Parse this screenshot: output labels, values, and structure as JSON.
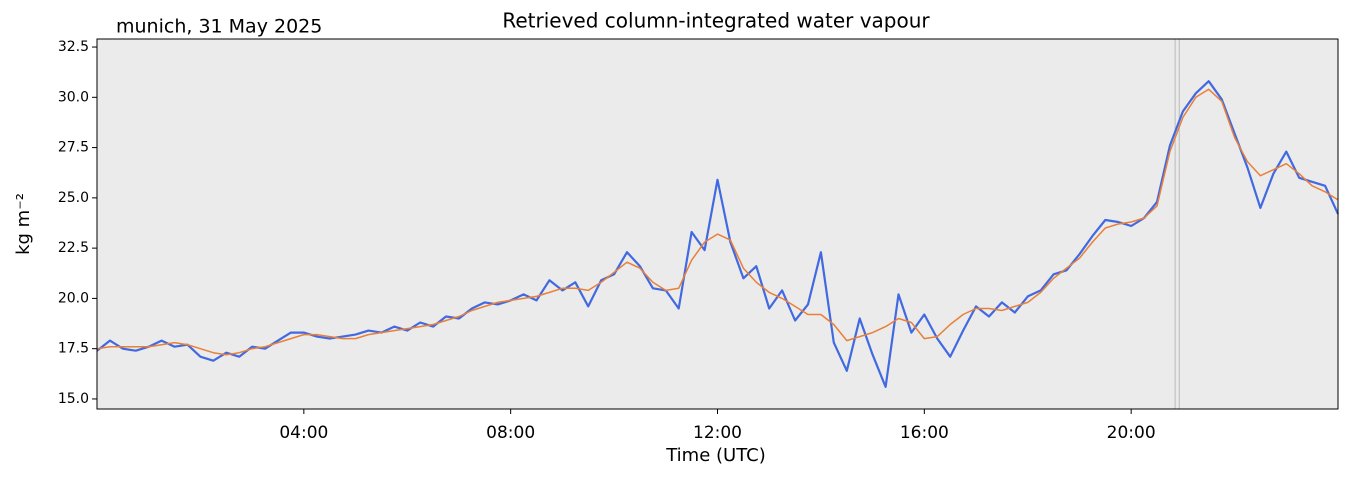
{
  "chart_data": {
    "type": "line",
    "title": "Retrieved column-integrated water vapour",
    "subtitle": "munich, 31 May 2025",
    "xlabel": "Time (UTC)",
    "ylabel": "kg m⁻²",
    "x": [
      0,
      0.25,
      0.5,
      0.75,
      1,
      1.25,
      1.5,
      1.75,
      2,
      2.25,
      2.5,
      2.75,
      3,
      3.25,
      3.5,
      3.75,
      4,
      4.25,
      4.5,
      4.75,
      5,
      5.25,
      5.5,
      5.75,
      6,
      6.25,
      6.5,
      6.75,
      7,
      7.25,
      7.5,
      7.75,
      8,
      8.25,
      8.5,
      8.75,
      9,
      9.25,
      9.5,
      9.75,
      10,
      10.25,
      10.5,
      10.75,
      11,
      11.25,
      11.5,
      11.75,
      12,
      12.25,
      12.5,
      12.75,
      13,
      13.25,
      13.5,
      13.75,
      14,
      14.25,
      14.5,
      14.75,
      15,
      15.25,
      15.5,
      15.75,
      16,
      16.25,
      16.5,
      16.75,
      17,
      17.25,
      17.5,
      17.75,
      18,
      18.25,
      18.5,
      18.75,
      19,
      19.25,
      19.5,
      19.75,
      20,
      20.25,
      20.5,
      20.75,
      21,
      21.25,
      21.5,
      21.75,
      22,
      22.25,
      22.5,
      22.75,
      23,
      23.25,
      23.5,
      23.75,
      24
    ],
    "series": [
      {
        "color": "#4169e1",
        "width": 2.2,
        "values": [
          17.4,
          17.9,
          17.5,
          17.4,
          17.6,
          17.9,
          17.6,
          17.7,
          17.1,
          16.9,
          17.3,
          17.1,
          17.6,
          17.5,
          17.9,
          18.3,
          18.3,
          18.1,
          18.0,
          18.1,
          18.2,
          18.4,
          18.3,
          18.6,
          18.4,
          18.8,
          18.6,
          19.1,
          19.0,
          19.5,
          19.8,
          19.7,
          19.9,
          20.2,
          19.9,
          20.9,
          20.4,
          20.8,
          19.6,
          20.9,
          21.2,
          22.3,
          21.6,
          20.5,
          20.4,
          19.5,
          23.3,
          22.4,
          25.9,
          22.8,
          21.0,
          21.6,
          19.5,
          20.4,
          18.9,
          19.7,
          22.3,
          17.8,
          16.4,
          19.0,
          17.2,
          15.6,
          20.2,
          18.3,
          19.2,
          18.0,
          17.1,
          18.4,
          19.6,
          19.1,
          19.8,
          19.3,
          20.1,
          20.4,
          21.2,
          21.4,
          22.2,
          23.1,
          23.9,
          23.8,
          23.6,
          24.0,
          24.8,
          27.6,
          29.3,
          30.2,
          30.8,
          29.9,
          28.2,
          26.5,
          24.5,
          26.2,
          27.3,
          26.0,
          25.8,
          25.6,
          24.2
        ]
      },
      {
        "color": "#e8803a",
        "width": 1.5,
        "values": [
          17.5,
          17.6,
          17.6,
          17.6,
          17.6,
          17.7,
          17.8,
          17.7,
          17.5,
          17.3,
          17.2,
          17.3,
          17.5,
          17.6,
          17.8,
          18.0,
          18.2,
          18.2,
          18.1,
          18.0,
          18.0,
          18.2,
          18.3,
          18.4,
          18.5,
          18.6,
          18.7,
          18.9,
          19.1,
          19.4,
          19.6,
          19.8,
          19.9,
          20.0,
          20.1,
          20.3,
          20.5,
          20.5,
          20.4,
          20.8,
          21.3,
          21.8,
          21.5,
          20.8,
          20.4,
          20.5,
          21.9,
          22.8,
          23.2,
          22.9,
          21.5,
          20.8,
          20.3,
          20.0,
          19.6,
          19.2,
          19.2,
          18.7,
          17.9,
          18.1,
          18.3,
          18.6,
          19.0,
          18.8,
          18.0,
          18.1,
          18.7,
          19.2,
          19.5,
          19.5,
          19.4,
          19.6,
          19.8,
          20.3,
          21.0,
          21.5,
          22.0,
          22.8,
          23.5,
          23.7,
          23.8,
          24.0,
          24.6,
          27.3,
          29.0,
          30.0,
          30.4,
          29.8,
          28.0,
          26.8,
          26.1,
          26.4,
          26.7,
          26.2,
          25.6,
          25.3,
          24.9
        ]
      }
    ],
    "vlines": [
      20.85,
      20.93
    ],
    "vline_color": "#bbbbbb",
    "background": "#ebebeb",
    "xlim": [
      0,
      24
    ],
    "xticks": [
      {
        "value": 4,
        "label": "04:00"
      },
      {
        "value": 8,
        "label": "08:00"
      },
      {
        "value": 12,
        "label": "12:00"
      },
      {
        "value": 16,
        "label": "16:00"
      },
      {
        "value": 20,
        "label": "20:00"
      }
    ],
    "ylim": [
      14.5,
      32.9
    ],
    "yticks": [
      {
        "value": 15,
        "label": "15.0"
      },
      17.5,
      {
        "value": 20,
        "label": "20.0"
      },
      22.5,
      {
        "value": 25,
        "label": "25.0"
      },
      27.5,
      {
        "value": 30,
        "label": "30.0"
      },
      32.5
    ]
  }
}
